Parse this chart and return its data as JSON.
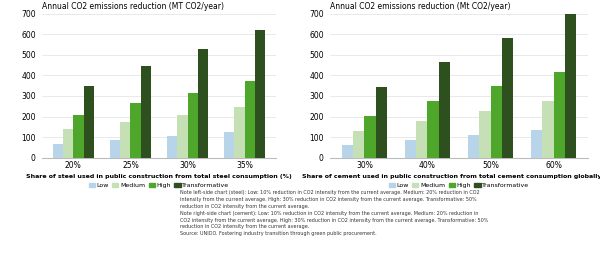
{
  "steel": {
    "title": "Annual CO2 emissions reduction (MT CO2/year)",
    "xlabel": "Share of steel used in public construction from total steel consumption (%)",
    "categories": [
      "20%",
      "25%",
      "30%",
      "35%"
    ],
    "low": [
      65,
      85,
      105,
      125
    ],
    "medium": [
      140,
      175,
      210,
      248
    ],
    "high": [
      210,
      265,
      315,
      372
    ],
    "transformative": [
      350,
      445,
      530,
      620
    ],
    "ylim": [
      0,
      700
    ],
    "yticks": [
      0,
      100,
      200,
      300,
      400,
      500,
      600,
      700
    ]
  },
  "cement": {
    "title": "Annual CO2 emissions reduction (Mt CO2/year)",
    "xlabel": "Share of cement used in public construction from total cement consumption globally (%)",
    "categories": [
      "30%",
      "40%",
      "50%",
      "60%"
    ],
    "low": [
      62,
      88,
      112,
      135
    ],
    "medium": [
      132,
      177,
      228,
      275
    ],
    "high": [
      204,
      277,
      347,
      415
    ],
    "transformative": [
      345,
      465,
      583,
      698
    ],
    "ylim": [
      0,
      700
    ],
    "yticks": [
      0,
      100,
      200,
      300,
      400,
      500,
      600,
      700
    ]
  },
  "colors": {
    "low": "#b8d4e8",
    "medium": "#c5e0b4",
    "high": "#4ea72a",
    "transformative": "#2e4f1e"
  },
  "legend_labels": [
    "Low",
    "Medium",
    "High",
    "Transformative"
  ],
  "note_text": "Note left-side chart (steel): Low: 10% reduction in CO2 intensity from the current average. Medium: 20% reduction in CO2\nintensity from the current average. High: 30% reduction in CO2 intensity from the current average. Transformative: 50%\nreduction in CO2 intensity from the current average.\nNote right-side chart (cement): Low: 10% reduction in CO2 intensity from the current average. Medium: 20% reduction in\nCO2 intensity from the current average. High: 30% reduction in CO2 intensity from the current average. Transformative: 50%\nreduction in CO2 intensity from the current average.\nSource: UNIDO. Fostering industry transition through green public procurement.",
  "bar_width": 0.18
}
